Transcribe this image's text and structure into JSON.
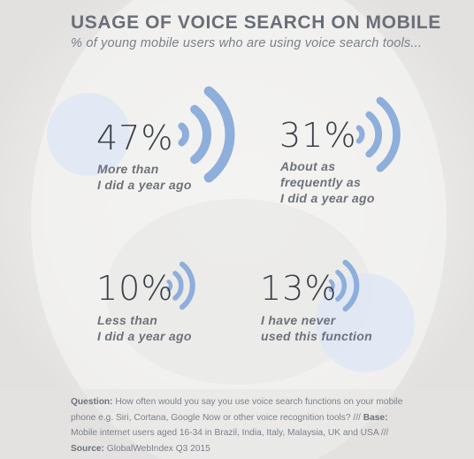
{
  "colors": {
    "accent": "#8eaedb",
    "circle": "#dfe8f6",
    "text_dark": "#3c4048",
    "text_muted": "#6e727a"
  },
  "header": {
    "title": "USAGE OF VOICE SEARCH ON MOBILE",
    "subtitle": "% of young mobile users who are using voice search tools..."
  },
  "chart_data": {
    "type": "table",
    "title": "USAGE OF VOICE SEARCH ON MOBILE",
    "subtitle": "% of young mobile users who are using voice search tools...",
    "categories": [
      "More than\nI did a year ago",
      "About as\nfrequently as\nI did a year ago",
      "Less than\nI did a year ago",
      "I have never\nused this function"
    ],
    "values": [
      47,
      31,
      10,
      13
    ],
    "value_labels": [
      "47%",
      "31%",
      "10%",
      "13%"
    ],
    "icon": "sound-wave-icon"
  },
  "footnote": {
    "question_label": "Question:",
    "question_text": " How often would you say you use voice search functions on your mobile phone e.g. Siri, Cortana, Google Now or other voice recognition tools? /// ",
    "base_label": "Base:",
    "base_text": " Mobile internet users aged 16-34 in Brazil, India, Italy, Malaysia, UK and USA ///",
    "source_label": "Source:",
    "source_text": " GlobalWebIndex Q3 2015"
  }
}
